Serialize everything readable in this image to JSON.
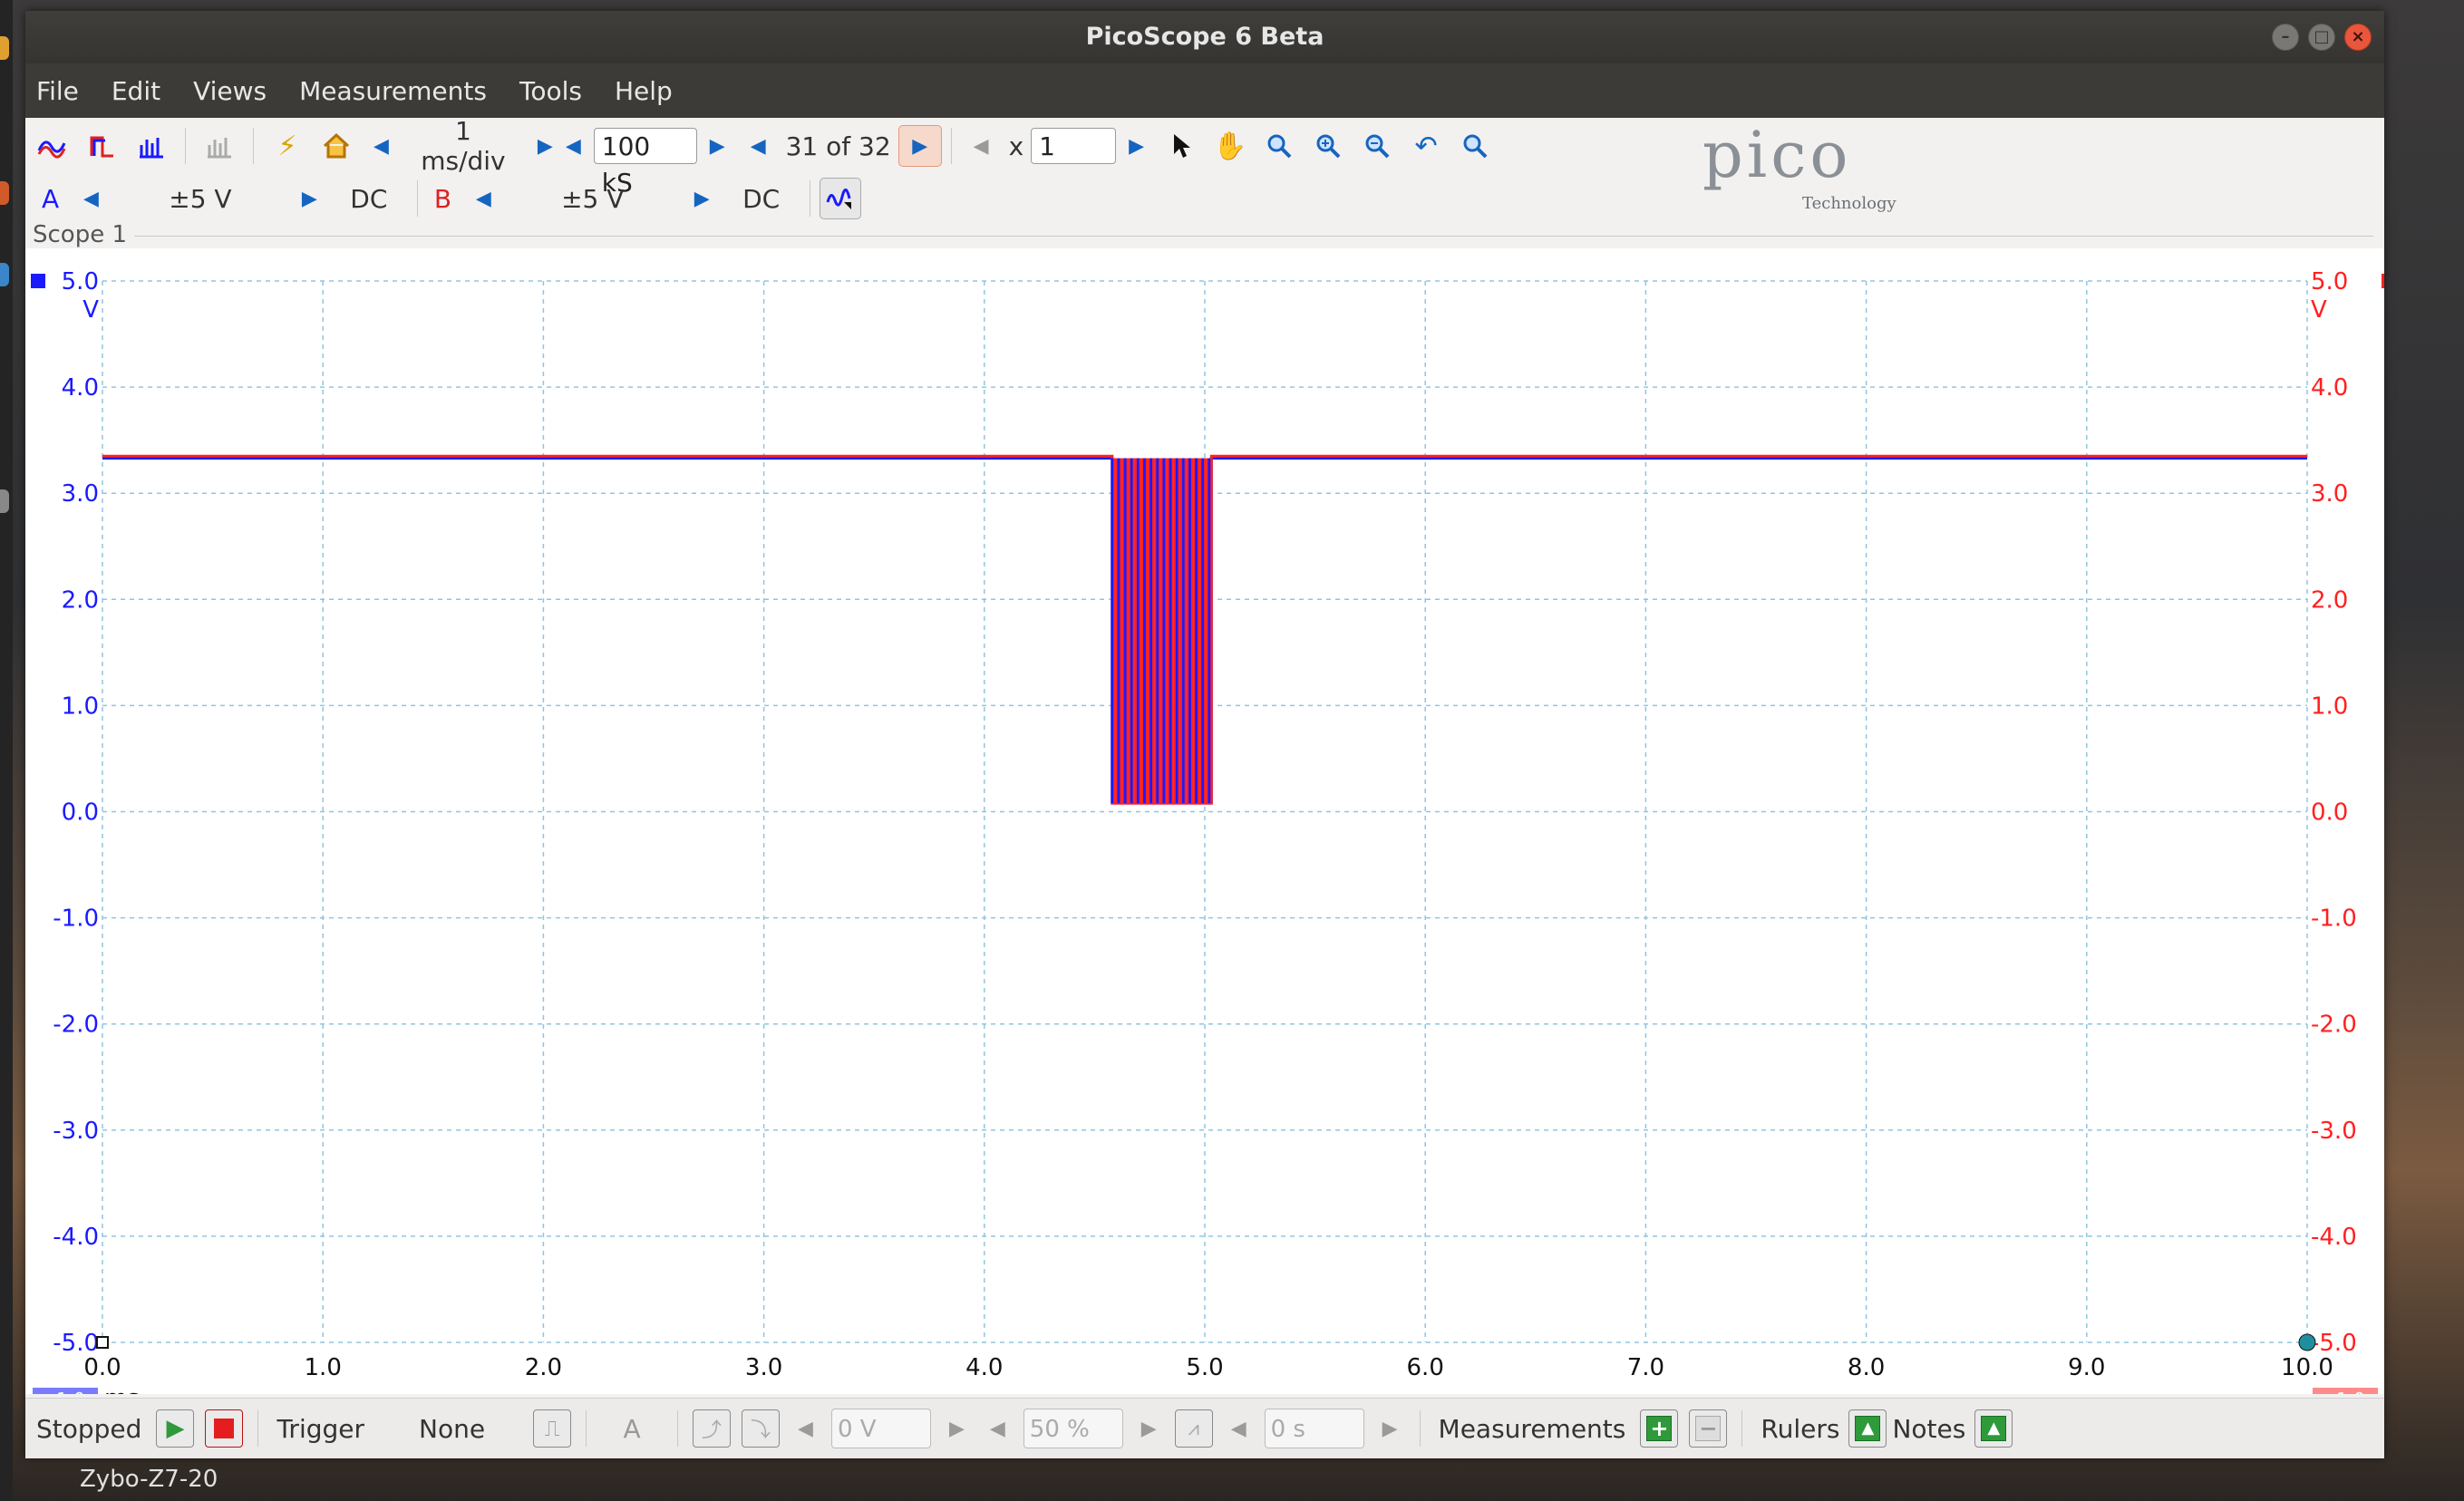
{
  "window": {
    "title": "PicoScope 6 Beta"
  },
  "menu": [
    "File",
    "Edit",
    "Views",
    "Measurements",
    "Tools",
    "Help"
  ],
  "toolbar": {
    "timebase": "1 ms/div",
    "samples": "100 kS",
    "capture_index": "31 of 32",
    "zoom_x_label": "x",
    "zoom_x_value": "1"
  },
  "channels": {
    "a": {
      "name": "A",
      "range": "±5 V",
      "coupling": "DC",
      "color": "#1a1aff"
    },
    "b": {
      "name": "B",
      "range": "±5 V",
      "coupling": "DC",
      "color": "#ff2020"
    }
  },
  "logo": {
    "word": "pico",
    "sub": "Technology"
  },
  "scope": {
    "title": "Scope 1"
  },
  "chart_data": {
    "type": "line",
    "x_ticks": [
      "0.0",
      "1.0",
      "2.0",
      "3.0",
      "4.0",
      "5.0",
      "6.0",
      "7.0",
      "8.0",
      "9.0",
      "10.0"
    ],
    "x_unit": "ms",
    "y_ticks": [
      "5.0",
      "4.0",
      "3.0",
      "2.0",
      "1.0",
      "0.0",
      "-1.0",
      "-2.0",
      "-3.0",
      "-4.0",
      "-5.0"
    ],
    "y_unit_left": "V",
    "y_unit_right": "V",
    "xlim": [
      0,
      10
    ],
    "ylim": [
      -5,
      5
    ],
    "scale_left": "x1.0",
    "scale_right": "x1.0",
    "grid": true,
    "series": [
      {
        "name": "A",
        "color": "#1a1aff",
        "x": [
          0,
          4.58,
          4.58,
          5.03,
          5.03,
          10
        ],
        "y": [
          3.33,
          3.33,
          0.08,
          0.08,
          3.33,
          3.33
        ]
      },
      {
        "name": "B",
        "color": "#ff2020",
        "x": [
          0,
          4.58,
          4.58,
          5.03,
          5.03,
          10
        ],
        "y": [
          3.35,
          3.35,
          0.08,
          0.08,
          3.35,
          3.35
        ]
      }
    ]
  },
  "status": {
    "state": "Stopped",
    "trigger_label": "Trigger",
    "trigger_mode": "None",
    "trigger_channel": "A",
    "threshold": "0 V",
    "pretrigger": "50 %",
    "delay": "0 s",
    "measurements_label": "Measurements",
    "rulers_label": "Rulers",
    "notes_label": "Notes"
  },
  "taskbar": {
    "device": "Zybo-Z7-20"
  }
}
